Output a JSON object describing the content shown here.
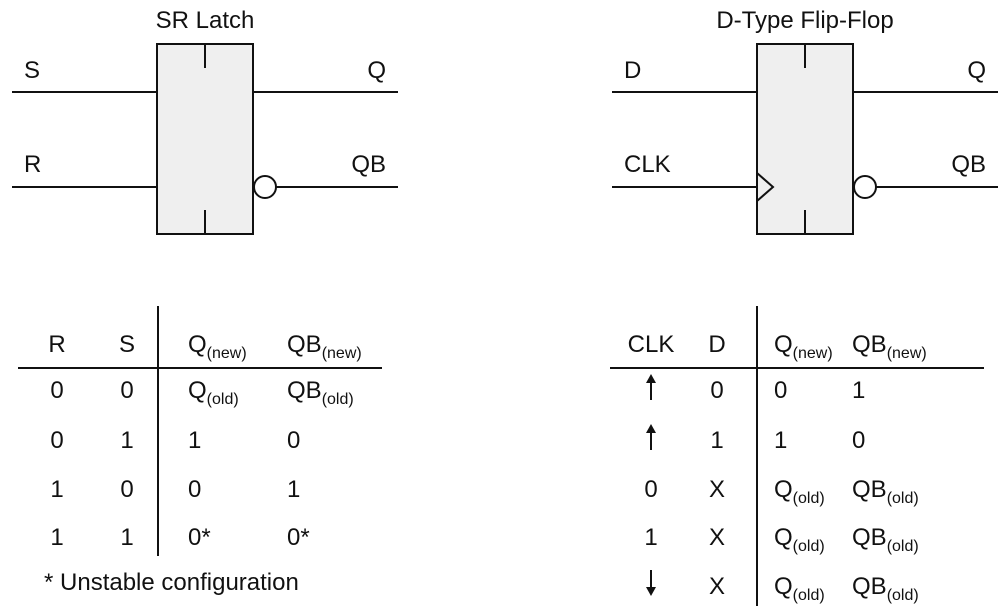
{
  "colors": {
    "block_fill": "#efefef",
    "stroke": "#111111",
    "background": "#ffffff"
  },
  "sr_latch": {
    "title": "SR Latch",
    "pins": {
      "s": "S",
      "r": "R",
      "q": "Q",
      "qb": "QB"
    },
    "table": {
      "headers": [
        {
          "main": "R",
          "sub": ""
        },
        {
          "main": "S",
          "sub": ""
        },
        {
          "main": "Q",
          "sub": "(new)"
        },
        {
          "main": "QB",
          "sub": "(new)"
        }
      ],
      "rows": [
        [
          {
            "main": "0",
            "sub": ""
          },
          {
            "main": "0",
            "sub": ""
          },
          {
            "main": "Q",
            "sub": "(old)"
          },
          {
            "main": "QB",
            "sub": "(old)"
          }
        ],
        [
          {
            "main": "0",
            "sub": ""
          },
          {
            "main": "1",
            "sub": ""
          },
          {
            "main": "1",
            "sub": ""
          },
          {
            "main": "0",
            "sub": ""
          }
        ],
        [
          {
            "main": "1",
            "sub": ""
          },
          {
            "main": "0",
            "sub": ""
          },
          {
            "main": "0",
            "sub": ""
          },
          {
            "main": "1",
            "sub": ""
          }
        ],
        [
          {
            "main": "1",
            "sub": ""
          },
          {
            "main": "1",
            "sub": ""
          },
          {
            "main": "0*",
            "sub": ""
          },
          {
            "main": "0*",
            "sub": ""
          }
        ]
      ],
      "footnote": "* Unstable configuration"
    }
  },
  "d_flip_flop": {
    "title": "D-Type Flip-Flop",
    "pins": {
      "d": "D",
      "clk": "CLK",
      "q": "Q",
      "qb": "QB"
    },
    "table": {
      "headers": [
        {
          "main": "CLK",
          "sub": ""
        },
        {
          "main": "D",
          "sub": ""
        },
        {
          "main": "Q",
          "sub": "(new)"
        },
        {
          "main": "QB",
          "sub": "(new)"
        }
      ],
      "rows": [
        [
          {
            "icon": "arrow-up-icon"
          },
          {
            "main": "0",
            "sub": ""
          },
          {
            "main": "0",
            "sub": ""
          },
          {
            "main": "1",
            "sub": ""
          }
        ],
        [
          {
            "icon": "arrow-up-icon"
          },
          {
            "main": "1",
            "sub": ""
          },
          {
            "main": "1",
            "sub": ""
          },
          {
            "main": "0",
            "sub": ""
          }
        ],
        [
          {
            "main": "0",
            "sub": ""
          },
          {
            "main": "X",
            "sub": ""
          },
          {
            "main": "Q",
            "sub": "(old)"
          },
          {
            "main": "QB",
            "sub": "(old)"
          }
        ],
        [
          {
            "main": "1",
            "sub": ""
          },
          {
            "main": "X",
            "sub": ""
          },
          {
            "main": "Q",
            "sub": "(old)"
          },
          {
            "main": "QB",
            "sub": "(old)"
          }
        ],
        [
          {
            "icon": "arrow-down-icon"
          },
          {
            "main": "X",
            "sub": ""
          },
          {
            "main": "Q",
            "sub": "(old)"
          },
          {
            "main": "QB",
            "sub": "(old)"
          }
        ]
      ]
    }
  }
}
